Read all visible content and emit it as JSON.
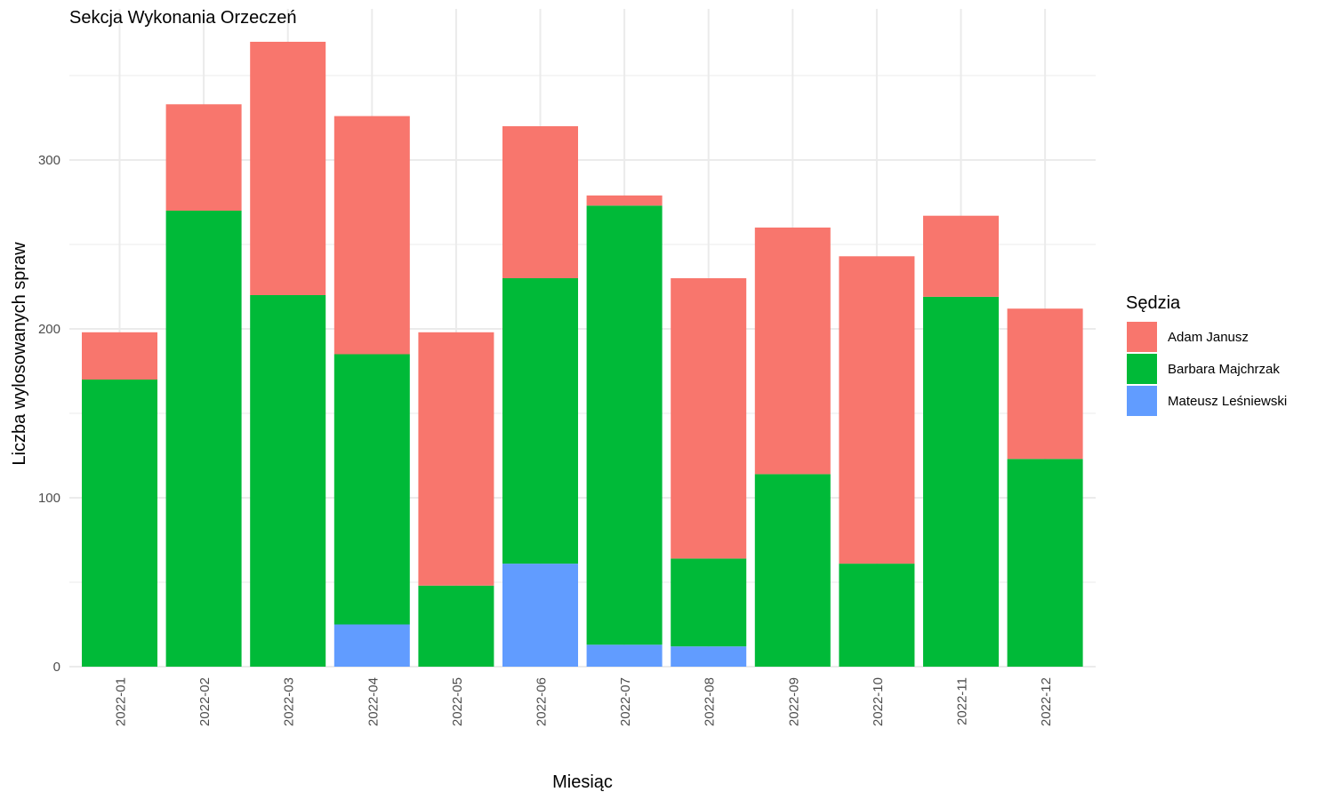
{
  "chart_data": {
    "type": "bar",
    "stacked": true,
    "title": "Sekcja Wykonania Orzeczeń",
    "xlabel": "Miesiąc",
    "ylabel": "Liczba wylosowanych spraw",
    "categories": [
      "2022-01",
      "2022-02",
      "2022-03",
      "2022-04",
      "2022-05",
      "2022-06",
      "2022-07",
      "2022-08",
      "2022-09",
      "2022-10",
      "2022-11",
      "2022-12"
    ],
    "series": [
      {
        "name": "Adam Janusz",
        "color": "#F8766D",
        "values": [
          28,
          63,
          150,
          141,
          150,
          90,
          6,
          166,
          146,
          182,
          48,
          89
        ]
      },
      {
        "name": "Barbara Majchrzak",
        "color": "#00BA38",
        "values": [
          170,
          270,
          220,
          160,
          48,
          169,
          260,
          52,
          114,
          61,
          219,
          123
        ]
      },
      {
        "name": "Mateusz Leśniewski",
        "color": "#619CFF",
        "values": [
          0,
          0,
          0,
          25,
          0,
          61,
          13,
          12,
          0,
          0,
          0,
          0
        ]
      }
    ],
    "stack_order_bottom_to_top": [
      "Mateusz Leśniewski",
      "Barbara Majchrzak",
      "Adam Janusz"
    ],
    "yticks": [
      0,
      100,
      200,
      300
    ],
    "ylim": [
      0,
      380
    ],
    "grid": true,
    "legend": {
      "title": "Sędzia",
      "position": "right"
    }
  }
}
